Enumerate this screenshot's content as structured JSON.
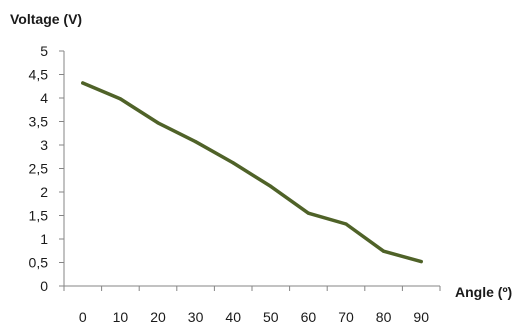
{
  "chart_data": {
    "type": "line",
    "title": "",
    "xlabel": "Angle (º)",
    "ylabel": "Voltage (V)",
    "x": [
      0,
      10,
      20,
      30,
      40,
      50,
      60,
      70,
      80,
      90
    ],
    "x_tick_labels": [
      "0",
      "10",
      "20",
      "30",
      "40",
      "50",
      "60",
      "70",
      "80",
      "90"
    ],
    "y_ticks": [
      0,
      0.5,
      1,
      1.5,
      2,
      2.5,
      3,
      3.5,
      4,
      4.5,
      5
    ],
    "y_tick_labels": [
      "0",
      "0,5",
      "1",
      "1,5",
      "2",
      "2,5",
      "3",
      "3,5",
      "4",
      "4,5",
      "5"
    ],
    "ylim": [
      0,
      5
    ],
    "series": [
      {
        "values": [
          4.32,
          3.98,
          3.47,
          3.07,
          2.62,
          2.12,
          1.55,
          1.32,
          0.74,
          0.52
        ],
        "color": "#4f6228"
      }
    ],
    "grid": false,
    "legend": "none"
  }
}
